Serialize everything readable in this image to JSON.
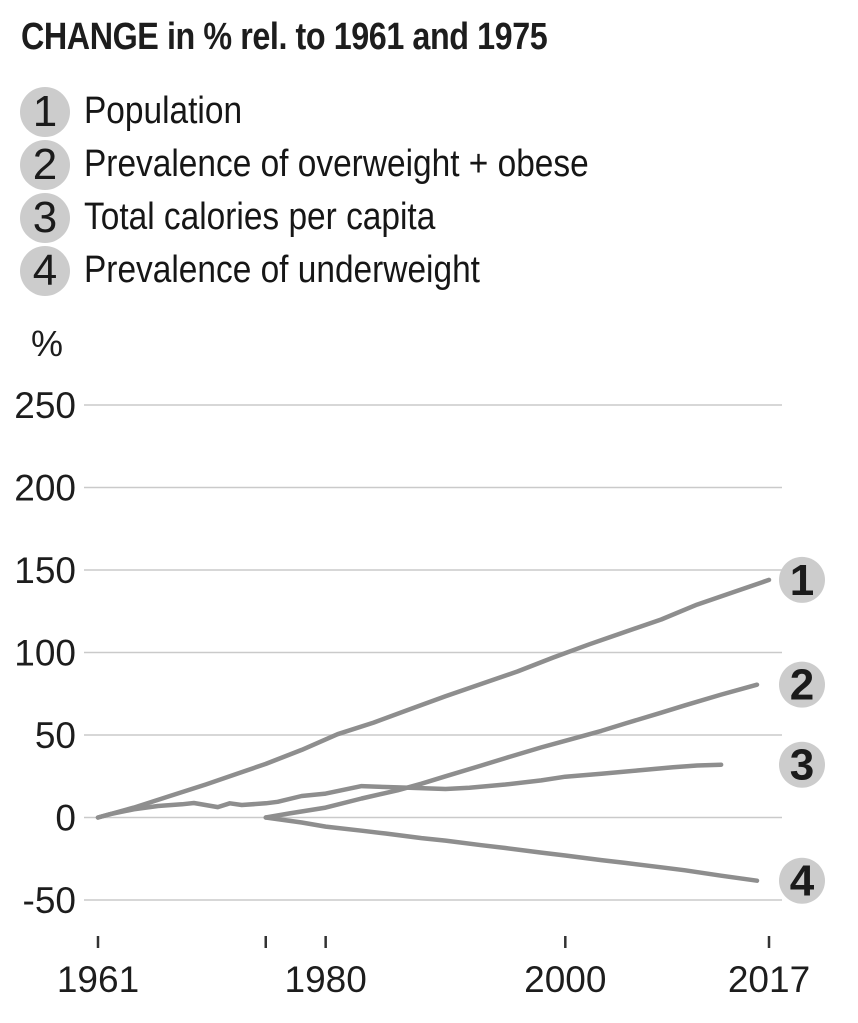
{
  "title": "CHANGE in % rel. to 1961 and 1975",
  "legend": [
    {
      "num": "1",
      "label": "Population"
    },
    {
      "num": "2",
      "label": "Prevalence of overweight + obese"
    },
    {
      "num": "3",
      "label": "Total calories per capita"
    },
    {
      "num": "4",
      "label": "Prevalence of underweight"
    }
  ],
  "colors": {
    "line": "#8e8e8e",
    "grid": "#cacaca",
    "badge_bg": "#cccccc",
    "badge_number": "#1b1b1b",
    "text": "#1d1d1d",
    "tick": "#333333"
  },
  "chart_data": {
    "type": "line",
    "title": "CHANGE in % rel. to 1961 and 1975",
    "ylabel": "%",
    "ylim": [
      -50,
      250
    ],
    "yticks": [
      250,
      200,
      150,
      100,
      50,
      0,
      -50
    ],
    "xlim": [
      1961,
      2017
    ],
    "xticks": [
      {
        "year": 1961,
        "label": "1961"
      },
      {
        "year": 1975,
        "label": ""
      },
      {
        "year": 1980,
        "label": "1980"
      },
      {
        "year": 2000,
        "label": "2000"
      },
      {
        "year": 2017,
        "label": "2017"
      }
    ],
    "grid": true,
    "legend_position": "right-badges",
    "series": [
      {
        "name": "Population",
        "badge": "1",
        "baseline_year": 1961,
        "points": [
          [
            1961,
            0
          ],
          [
            1964,
            6
          ],
          [
            1967,
            13
          ],
          [
            1970,
            20
          ],
          [
            1973,
            27.5
          ],
          [
            1975,
            32.5
          ],
          [
            1978,
            41
          ],
          [
            1981,
            50.5
          ],
          [
            1984,
            57.5
          ],
          [
            1987,
            65.5
          ],
          [
            1990,
            73.5
          ],
          [
            1993,
            81
          ],
          [
            1996,
            88.5
          ],
          [
            1999,
            97
          ],
          [
            2002,
            105
          ],
          [
            2005,
            112.5
          ],
          [
            2008,
            120
          ],
          [
            2011,
            129
          ],
          [
            2014,
            136.5
          ],
          [
            2017,
            144
          ]
        ]
      },
      {
        "name": "Prevalence of overweight + obese",
        "badge": "2",
        "baseline_year": 1975,
        "points": [
          [
            1975,
            0
          ],
          [
            1977,
            2.5
          ],
          [
            1980,
            6
          ],
          [
            1983,
            11.5
          ],
          [
            1986,
            16.5
          ],
          [
            1988,
            20.5
          ],
          [
            1990,
            25
          ],
          [
            1993,
            31.5
          ],
          [
            1995,
            36
          ],
          [
            1998,
            42.5
          ],
          [
            2000,
            46.5
          ],
          [
            2003,
            52.5
          ],
          [
            2005,
            57
          ],
          [
            2008,
            63.5
          ],
          [
            2010,
            68
          ],
          [
            2013,
            74.5
          ],
          [
            2016,
            80.5
          ]
        ]
      },
      {
        "name": "Total calories per capita",
        "badge": "3",
        "baseline_year": 1961,
        "points": [
          [
            1961,
            0
          ],
          [
            1962,
            2
          ],
          [
            1964,
            5
          ],
          [
            1966,
            7
          ],
          [
            1968,
            8
          ],
          [
            1969,
            8.8
          ],
          [
            1971,
            6.3
          ],
          [
            1972,
            8.6
          ],
          [
            1973,
            7.6
          ],
          [
            1975,
            8.6
          ],
          [
            1976,
            9.5
          ],
          [
            1978,
            13
          ],
          [
            1980,
            14.5
          ],
          [
            1982,
            17.5
          ],
          [
            1983,
            19
          ],
          [
            1985,
            18.5
          ],
          [
            1987,
            18
          ],
          [
            1990,
            17.3
          ],
          [
            1992,
            18
          ],
          [
            1995,
            20
          ],
          [
            1998,
            22.5
          ],
          [
            2000,
            24.7
          ],
          [
            2003,
            26.5
          ],
          [
            2006,
            28.5
          ],
          [
            2009,
            30.5
          ],
          [
            2011,
            31.5
          ],
          [
            2013,
            32
          ]
        ]
      },
      {
        "name": "Prevalence of underweight",
        "badge": "4",
        "baseline_year": 1975,
        "points": [
          [
            1975,
            0
          ],
          [
            1978,
            -3
          ],
          [
            1980,
            -5.5
          ],
          [
            1983,
            -8
          ],
          [
            1985,
            -9.7
          ],
          [
            1988,
            -12.5
          ],
          [
            1990,
            -14
          ],
          [
            1993,
            -16.8
          ],
          [
            1995,
            -18.5
          ],
          [
            1998,
            -21.3
          ],
          [
            2000,
            -23
          ],
          [
            2003,
            -25.8
          ],
          [
            2005,
            -27.5
          ],
          [
            2008,
            -30.2
          ],
          [
            2010,
            -32
          ],
          [
            2013,
            -35.3
          ],
          [
            2016,
            -38.3
          ]
        ]
      }
    ]
  }
}
